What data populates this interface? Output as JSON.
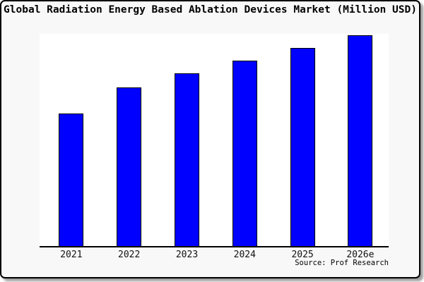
{
  "page": {
    "background": "#ffffff",
    "card_background": "#f8f8f8",
    "card_border_color": "#000000"
  },
  "chart_data": {
    "type": "bar",
    "title": "Global Radiation Energy Based Ablation Devices Market (Million USD)",
    "categories": [
      "2021",
      "2022",
      "2023",
      "2024",
      "2025",
      "2026e"
    ],
    "values": [
      188,
      225,
      245,
      263,
      281,
      299
    ],
    "ylim": [
      0,
      301
    ],
    "xlabel": "",
    "ylabel": "",
    "grid": false,
    "y_axis_tick_labels_visible": false,
    "legend_position": "none",
    "bar_color": "#0000ff",
    "bar_edge_color": "#000000",
    "source_label": "Source: Prof Research"
  }
}
